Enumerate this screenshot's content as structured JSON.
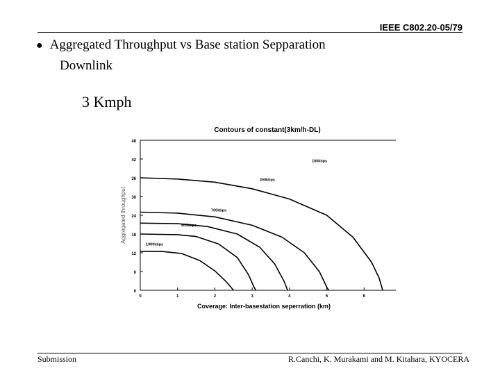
{
  "header": {
    "doc_id": "IEEE C802.20-05/79"
  },
  "slide": {
    "bullet_text": "Aggregated Throughput vs Base station Sepparation",
    "sub_text": "Downlink",
    "speed": "3 Kmph"
  },
  "footer": {
    "left": "Submission",
    "right": "R.Canchi, K. Murakami and M. Kitahara, KYOCERA"
  },
  "chart_data": {
    "type": "line",
    "title": "Contours of constant(3km/h-DL)",
    "xlabel": "Coverage: Inter-basestation seperration (km)",
    "ylabel": "Aggregated throughput",
    "xlim": [
      0,
      7
    ],
    "ylim": [
      0,
      48
    ],
    "x_ticks": [
      0,
      1,
      2,
      3,
      4,
      5,
      6
    ],
    "y_ticks": [
      0,
      6,
      12,
      18,
      24,
      30,
      36,
      42,
      48
    ],
    "y_tick_labels": [
      "0",
      "6",
      "12",
      "18",
      "24",
      "30",
      "36",
      "42",
      "48"
    ],
    "grid": false,
    "series": [
      {
        "name": "100kbps",
        "label_at": [
          4.6,
          41
        ],
        "points": [
          [
            0,
            36
          ],
          [
            1,
            35.6
          ],
          [
            2,
            34.6
          ],
          [
            3,
            32.5
          ],
          [
            4,
            29.2
          ],
          [
            5,
            24
          ],
          [
            5.7,
            17
          ],
          [
            6.2,
            9
          ],
          [
            6.4,
            4
          ],
          [
            6.5,
            0
          ]
        ]
      },
      {
        "name": "300kbps",
        "label_at": [
          3.2,
          35
        ],
        "points": [
          [
            0,
            25
          ],
          [
            1,
            24.7
          ],
          [
            2,
            23.5
          ],
          [
            3,
            20.8
          ],
          [
            3.8,
            17
          ],
          [
            4.4,
            12
          ],
          [
            4.8,
            6
          ],
          [
            5,
            1
          ],
          [
            5.05,
            0
          ]
        ]
      },
      {
        "name": "700kbps",
        "label_at": [
          1.9,
          25.2
        ],
        "points": [
          [
            0,
            21.5
          ],
          [
            1,
            21.3
          ],
          [
            1.8,
            20.4
          ],
          [
            2.6,
            18
          ],
          [
            3.2,
            13.8
          ],
          [
            3.6,
            8.5
          ],
          [
            3.85,
            3
          ],
          [
            3.95,
            0
          ]
        ]
      },
      {
        "name": "800kbps",
        "label_at": [
          1.1,
          20.5
        ],
        "points": [
          [
            0,
            18
          ],
          [
            1,
            17.8
          ],
          [
            1.5,
            17.2
          ],
          [
            2.1,
            14.8
          ],
          [
            2.6,
            10.5
          ],
          [
            2.9,
            5
          ],
          [
            3.05,
            1
          ],
          [
            3.1,
            0
          ]
        ]
      },
      {
        "name": "1000kbps",
        "label_at": [
          0.15,
          14.3
        ],
        "points": [
          [
            0,
            12.5
          ],
          [
            0.6,
            12.4
          ],
          [
            1.1,
            11.8
          ],
          [
            1.6,
            9.5
          ],
          [
            2,
            6.2
          ],
          [
            2.3,
            2.8
          ],
          [
            2.5,
            0
          ]
        ]
      }
    ]
  }
}
